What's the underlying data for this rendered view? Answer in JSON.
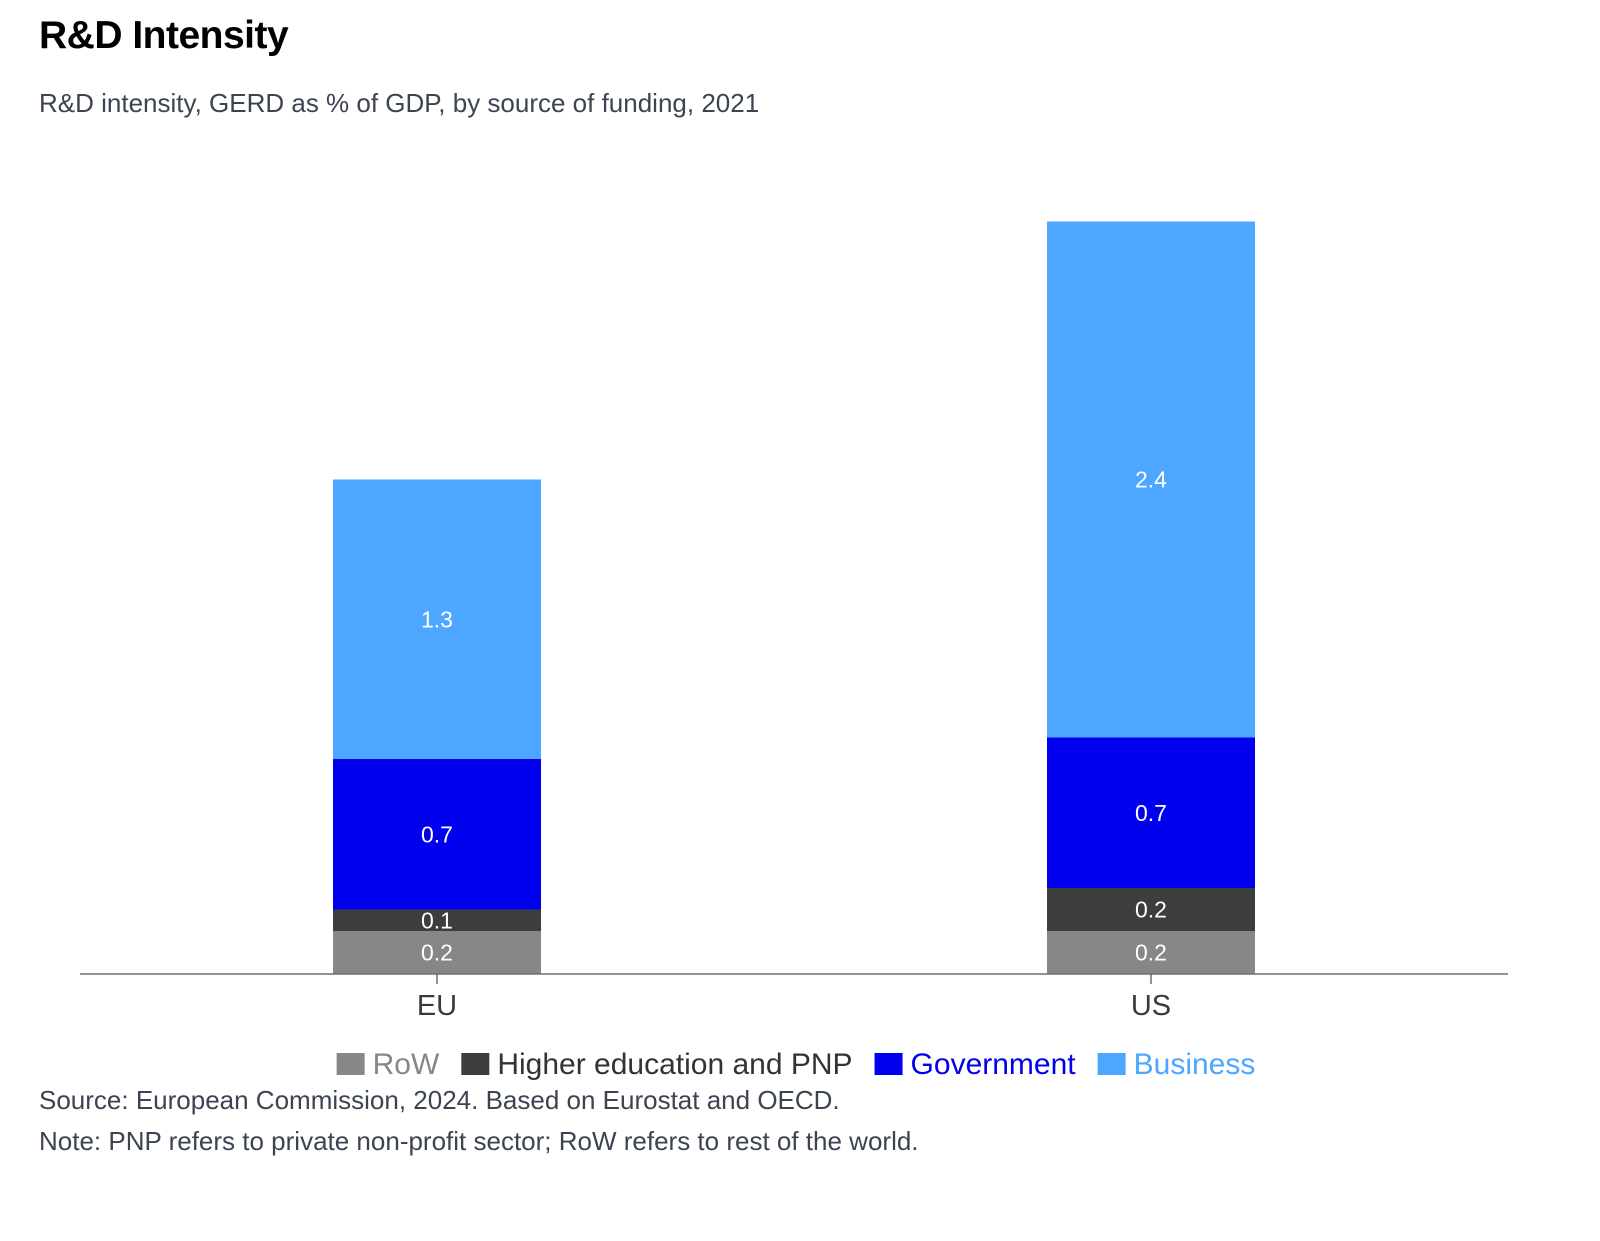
{
  "header": {
    "title": "R&D Intensity",
    "subtitle": "R&D intensity, GERD as % of GDP, by source of funding, 2021"
  },
  "chart_data": {
    "type": "bar",
    "stacked": true,
    "categories": [
      "EU",
      "US"
    ],
    "series": [
      {
        "name": "RoW",
        "values": [
          0.2,
          0.2
        ],
        "labels": [
          "0.2",
          "0.2"
        ],
        "color": "#878787",
        "legend_text_color": "#878787"
      },
      {
        "name": "Higher education and PNP",
        "values": [
          0.1,
          0.2
        ],
        "labels": [
          "0.1",
          "0.2"
        ],
        "color": "#3d3d3d",
        "legend_text_color": "#333333"
      },
      {
        "name": "Government",
        "values": [
          0.7,
          0.7
        ],
        "labels": [
          "0.7",
          "0.7"
        ],
        "color": "#0000ef",
        "legend_text_color": "#0000ef"
      },
      {
        "name": "Business",
        "values": [
          1.3,
          2.4
        ],
        "labels": [
          "1.3",
          "2.4"
        ],
        "color": "#4da6ff",
        "legend_text_color": "#4da6ff"
      }
    ],
    "ylim": [
      0,
      3.5
    ],
    "title": "R&D Intensity",
    "xlabel": "",
    "ylabel": "",
    "legend_position": "bottom-center"
  },
  "footer": {
    "source": "Source: European Commission, 2024. Based on Eurostat and OECD.",
    "note": "Note: PNP refers to private non-profit sector; RoW refers to rest of the world."
  }
}
